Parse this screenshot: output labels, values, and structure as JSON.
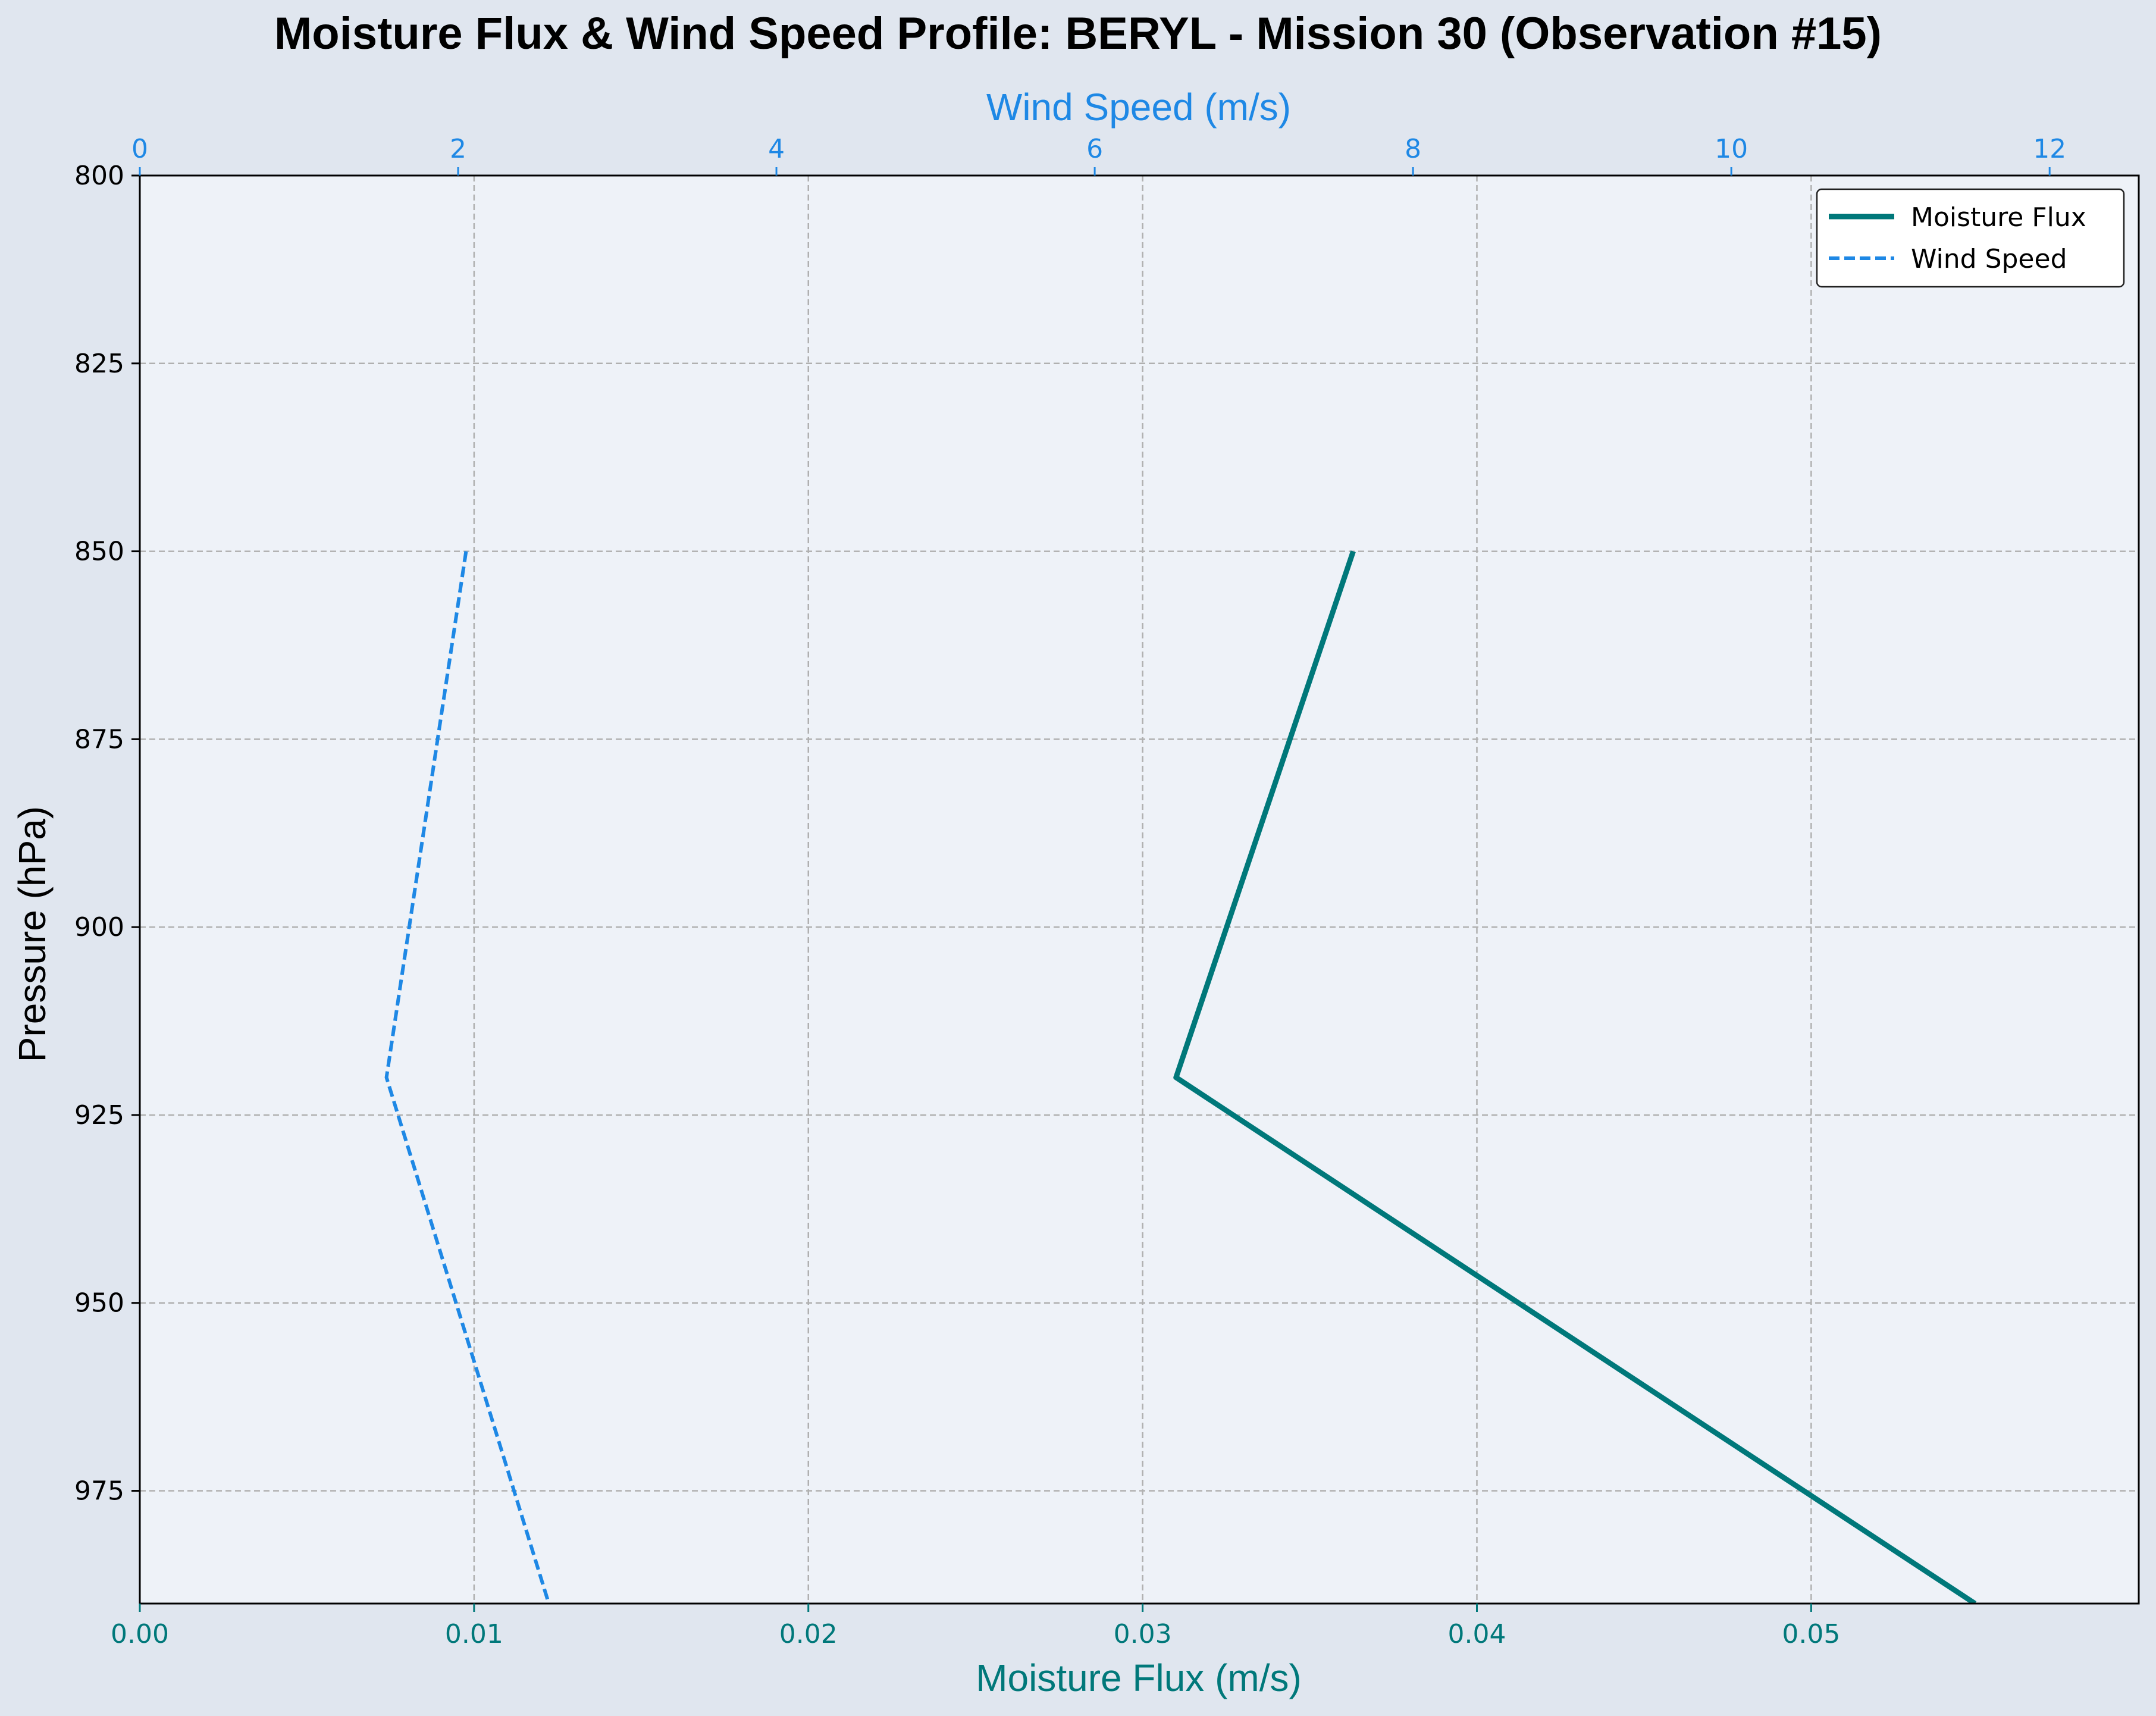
{
  "colors": {
    "page_background": "#e0e6ef",
    "plot_background": "#eef2f8",
    "moisture_flux": "#00787a",
    "wind_speed": "#1e88e5",
    "grid": "#b0b0b0",
    "axis": "#000000"
  },
  "chart_data": {
    "type": "line",
    "title": "Moisture Flux & Wind Speed Profile: BERYL - Mission 30 (Observation #15)",
    "y_axis": {
      "label": "Pressure (hPa)",
      "range": [
        800,
        990
      ],
      "inverted": true,
      "ticks": [
        800,
        825,
        850,
        875,
        900,
        925,
        950,
        975
      ],
      "tick_labels": [
        "800",
        "825",
        "850",
        "875",
        "900",
        "925",
        "950",
        "975"
      ]
    },
    "x_axis_bottom": {
      "label": "Moisture Flux (m/s)",
      "range": [
        0,
        0.0598
      ],
      "ticks": [
        0,
        0.01,
        0.02,
        0.03,
        0.04,
        0.05
      ],
      "tick_labels": [
        "0.00",
        "0.01",
        "0.02",
        "0.03",
        "0.04",
        "0.05"
      ]
    },
    "x_axis_top": {
      "label": "Wind Speed (m/s)",
      "range": [
        0,
        12.56
      ],
      "ticks": [
        0,
        2,
        4,
        6,
        8,
        10,
        12
      ],
      "tick_labels": [
        "0",
        "2",
        "4",
        "6",
        "8",
        "10",
        "12"
      ]
    },
    "grid": true,
    "legend_position": "top-right",
    "series": [
      {
        "name": "Moisture Flux",
        "axis": "bottom",
        "line_style": "solid",
        "points": [
          {
            "x": 0.0363,
            "y": 850
          },
          {
            "x": 0.031,
            "y": 920
          },
          {
            "x": 0.0549,
            "y": 990
          }
        ]
      },
      {
        "name": "Wind Speed",
        "axis": "top",
        "line_style": "dashed",
        "points": [
          {
            "x": 2.05,
            "y": 850
          },
          {
            "x": 1.55,
            "y": 920
          },
          {
            "x": 2.57,
            "y": 990
          }
        ]
      }
    ]
  }
}
